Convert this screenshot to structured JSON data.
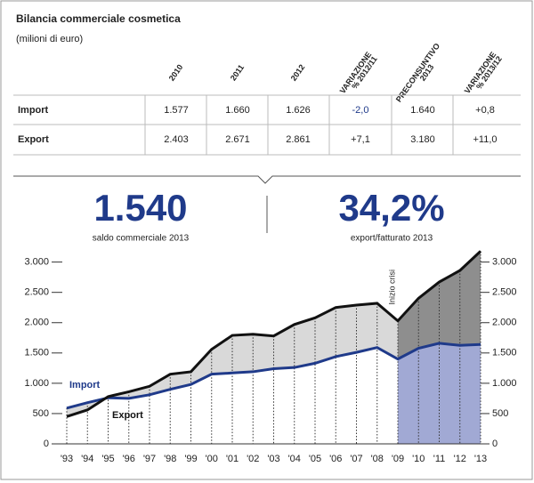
{
  "title": "Bilancia commerciale cosmetica",
  "subtitle": "(milioni di euro)",
  "table": {
    "columns": [
      [
        "2010"
      ],
      [
        "2011"
      ],
      [
        "2012"
      ],
      [
        "VARIAZIONE",
        "% 2012/11"
      ],
      [
        "PRECONSUNTIVO",
        "2013"
      ],
      [
        "VARIAZIONE",
        "% 2013/12"
      ]
    ],
    "rows": [
      [
        "Import",
        "1.577",
        "1.660",
        "1.626",
        "-2,0",
        "1.640",
        "+0,8"
      ],
      [
        "Export",
        "2.403",
        "2.671",
        "2.861",
        "+7,1",
        "3.180",
        "+11,0"
      ]
    ]
  },
  "highlights": [
    {
      "value": "1.540",
      "label": "saldo commerciale 2013"
    },
    {
      "value": "34,2%",
      "label": "export/fatturato 2013"
    }
  ],
  "chart_data": {
    "type": "line",
    "categories": [
      "'93",
      "'94",
      "'95",
      "'96",
      "'97",
      "'98",
      "'99",
      "'00",
      "'01",
      "'02",
      "'03",
      "'04",
      "'05",
      "'06",
      "'07",
      "'08",
      "'09",
      "'10",
      "'11",
      "'12",
      "'13"
    ],
    "series": [
      {
        "name": "Import",
        "color": "#1f3a8a",
        "values": [
          590,
          680,
          760,
          750,
          810,
          900,
          980,
          1150,
          1170,
          1190,
          1240,
          1260,
          1330,
          1440,
          1510,
          1590,
          1400,
          1577,
          1660,
          1626,
          1640
        ]
      },
      {
        "name": "Export",
        "color": "#111111",
        "values": [
          450,
          560,
          780,
          860,
          950,
          1150,
          1190,
          1560,
          1790,
          1810,
          1780,
          1970,
          2080,
          2250,
          2290,
          2320,
          2030,
          2403,
          2671,
          2861,
          3180
        ]
      }
    ],
    "annotation": {
      "text": "Inizio crisi",
      "x": "'09"
    },
    "area_color": "#d9d9d9",
    "crisis_area_color": "#8e8e8e",
    "crisis_import_color": "#a1a9d4",
    "ylim": [
      0,
      3200
    ],
    "yticks": [
      0,
      500,
      {
        "value": 1000,
        "label": "1.000"
      },
      {
        "value": 1500,
        "label": "1.500"
      },
      {
        "value": 2000,
        "label": "2.000"
      },
      {
        "value": 2500,
        "label": "2.500"
      },
      {
        "value": 3000,
        "label": "3.000"
      }
    ]
  }
}
